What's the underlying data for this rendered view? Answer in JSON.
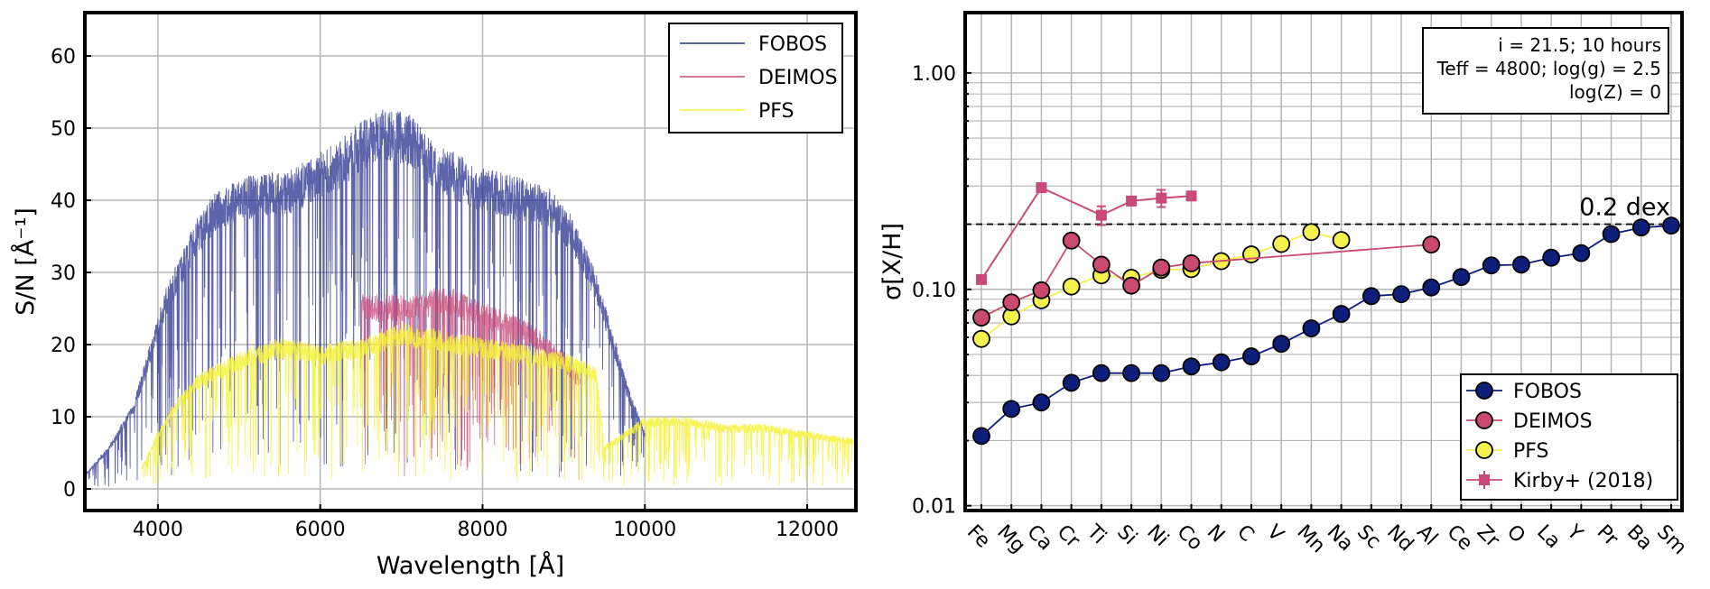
{
  "chart_data": [
    {
      "type": "line",
      "xlabel": "Wavelength [Å]",
      "ylabel": "S/N [Å⁻¹]",
      "xlim": [
        3100,
        12600
      ],
      "ylim": [
        -3,
        66
      ],
      "xticks": [
        4000,
        6000,
        8000,
        10000,
        12000
      ],
      "yticks": [
        0,
        10,
        20,
        30,
        40,
        50,
        60
      ],
      "grid": true,
      "legend_position": "top-right",
      "series": [
        {
          "name": "FOBOS",
          "color": "#27308c",
          "x": [
            3100,
            3400,
            3700,
            3900,
            4100,
            4300,
            4500,
            4700,
            5000,
            5300,
            5600,
            5900,
            6200,
            6500,
            6800,
            7100,
            7400,
            7600,
            7900,
            8200,
            8500,
            8800,
            9100,
            9400,
            9600,
            9800,
            10000
          ],
          "y": [
            2,
            6,
            12,
            20,
            28,
            33,
            38,
            41,
            43,
            44,
            44,
            46,
            48,
            51,
            53,
            52,
            48,
            47,
            45,
            44,
            43,
            42,
            38,
            30,
            22,
            14,
            8
          ]
        },
        {
          "name": "DEIMOS",
          "color": "#c94a77",
          "x": [
            6500,
            6800,
            7000,
            7200,
            7400,
            7600,
            7800,
            8000,
            8200,
            8400,
            8600,
            8800,
            9000,
            9200
          ],
          "y": [
            27,
            27,
            27,
            27,
            28,
            28,
            27,
            26,
            25,
            24,
            23,
            21,
            19,
            16
          ]
        },
        {
          "name": "PFS",
          "color": "#f6f23a",
          "x": [
            3800,
            4000,
            4200,
            4500,
            5000,
            5500,
            6000,
            6500,
            7000,
            7500,
            8000,
            8500,
            9000,
            9400,
            9500,
            10000,
            10500,
            11000,
            11500,
            12000,
            12600
          ],
          "y": [
            3,
            8,
            12,
            16,
            19,
            21,
            20,
            21,
            23,
            22,
            21,
            20,
            19,
            17,
            6,
            10,
            10,
            9,
            9,
            8,
            7
          ]
        }
      ]
    },
    {
      "type": "scatter",
      "ylabel": "σ[X/H]",
      "yscale": "log",
      "ylim": [
        0.0095,
        1.9
      ],
      "yticks": [
        0.01,
        0.1,
        1.0
      ],
      "ytick_labels": [
        "0.01",
        "0.10",
        "1.00"
      ],
      "categories": [
        "Fe",
        "Mg",
        "Ca",
        "Cr",
        "Ti",
        "Si",
        "Ni",
        "Co",
        "N",
        "C",
        "V",
        "Mn",
        "Na",
        "Sc",
        "Nd",
        "Al",
        "Ce",
        "Zr",
        "O",
        "La",
        "Y",
        "Pr",
        "Ba",
        "Sm"
      ],
      "grid": true,
      "legend_position": "bottom-right",
      "reference_line": {
        "value": 0.2,
        "label": "0.2 dex"
      },
      "info_box": [
        "i = 21.5; 10 hours",
        "Teff = 4800; log(g) = 2.5",
        "log(Z) = 0"
      ],
      "series": [
        {
          "name": "FOBOS",
          "color": "#0d1f7a",
          "values": [
            0.021,
            0.028,
            0.03,
            0.037,
            0.041,
            0.041,
            0.041,
            0.044,
            0.046,
            0.049,
            0.056,
            0.066,
            0.077,
            0.093,
            0.095,
            0.102,
            0.114,
            0.129,
            0.13,
            0.14,
            0.147,
            0.18,
            0.193,
            0.197
          ]
        },
        {
          "name": "DEIMOS",
          "color": "#c94a6e",
          "values": [
            0.074,
            0.087,
            0.099,
            0.168,
            0.13,
            0.104,
            0.126,
            0.132,
            null,
            null,
            null,
            null,
            null,
            null,
            null,
            0.161,
            null,
            null,
            null,
            null,
            null,
            null,
            null,
            null
          ]
        },
        {
          "name": "PFS",
          "color": "#f5f24e",
          "values": [
            0.059,
            0.075,
            0.089,
            0.103,
            0.116,
            0.113,
            0.123,
            0.124,
            0.135,
            0.145,
            0.162,
            0.184,
            0.169,
            null,
            null,
            null,
            null,
            null,
            null,
            null,
            null,
            null,
            null,
            null
          ]
        },
        {
          "name": "Kirby+ (2018)",
          "color": "#c94a7a",
          "values": [
            0.111,
            null,
            0.295,
            null,
            0.22,
            0.256,
            0.264,
            0.27,
            null,
            null,
            null,
            null,
            null,
            null,
            null,
            null,
            null,
            null,
            null,
            null,
            null,
            null,
            null,
            null
          ],
          "errors": [
            0,
            null,
            0,
            null,
            0.022,
            0.012,
            0.024,
            0.012,
            null,
            null,
            null,
            null,
            null,
            null,
            null,
            null,
            null,
            null,
            null,
            null,
            null,
            null,
            null,
            null
          ]
        }
      ]
    }
  ]
}
